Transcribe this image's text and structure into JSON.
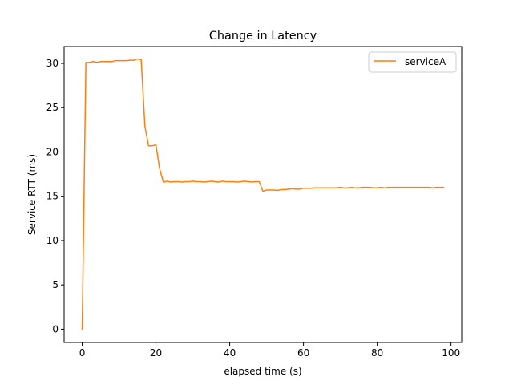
{
  "chart_data": {
    "type": "line",
    "title": "Change in Latency",
    "xlabel": "elapsed time (s)",
    "ylabel": "Service RTT (ms)",
    "xlim": [
      -4.9,
      102.9
    ],
    "ylim": [
      -1.5,
      31.9
    ],
    "xticks": [
      0,
      20,
      40,
      60,
      80,
      100
    ],
    "yticks": [
      0,
      5,
      10,
      15,
      20,
      25,
      30
    ],
    "grid": false,
    "legend_position": "upper right",
    "series": [
      {
        "name": "serviceA",
        "color": "#ff7f0e",
        "x": [
          0,
          1,
          2,
          3,
          4,
          5,
          6,
          7,
          8,
          9,
          10,
          11,
          12,
          13,
          14,
          15,
          16,
          17,
          18,
          19,
          20,
          21,
          22,
          23,
          24,
          25,
          26,
          27,
          28,
          29,
          30,
          31,
          32,
          33,
          34,
          35,
          36,
          37,
          38,
          39,
          40,
          41,
          42,
          43,
          44,
          45,
          46,
          47,
          48,
          49,
          50,
          51,
          52,
          53,
          54,
          55,
          56,
          57,
          58,
          59,
          60,
          61,
          62,
          63,
          64,
          65,
          66,
          67,
          68,
          69,
          70,
          71,
          72,
          73,
          74,
          75,
          76,
          77,
          78,
          79,
          80,
          81,
          82,
          83,
          84,
          85,
          86,
          87,
          88,
          89,
          90,
          91,
          92,
          93,
          94,
          95,
          96,
          97,
          98
        ],
        "y": [
          0,
          30.1,
          30.1,
          30.2,
          30.1,
          30.2,
          30.2,
          30.2,
          30.2,
          30.3,
          30.3,
          30.3,
          30.3,
          30.35,
          30.35,
          30.5,
          30.4,
          22.9,
          20.7,
          20.7,
          20.8,
          18.1,
          16.6,
          16.7,
          16.6,
          16.65,
          16.65,
          16.6,
          16.65,
          16.65,
          16.7,
          16.65,
          16.65,
          16.6,
          16.65,
          16.7,
          16.65,
          16.6,
          16.7,
          16.65,
          16.65,
          16.65,
          16.6,
          16.65,
          16.7,
          16.65,
          16.6,
          16.65,
          16.65,
          15.55,
          15.7,
          15.7,
          15.7,
          15.65,
          15.75,
          15.75,
          15.8,
          15.85,
          15.8,
          15.8,
          15.9,
          15.9,
          15.9,
          15.95,
          15.95,
          15.95,
          15.95,
          15.95,
          15.95,
          15.95,
          16.0,
          15.95,
          15.95,
          16.0,
          15.95,
          15.95,
          16.0,
          16.0,
          16.0,
          15.95,
          15.95,
          16.0,
          15.95,
          16.0,
          16.0,
          16.0,
          16.0,
          16.0,
          16.0,
          16.0,
          16.0,
          16.0,
          16.0,
          16.0,
          16.0,
          15.95,
          16.0,
          16.0,
          16.0
        ]
      }
    ]
  }
}
